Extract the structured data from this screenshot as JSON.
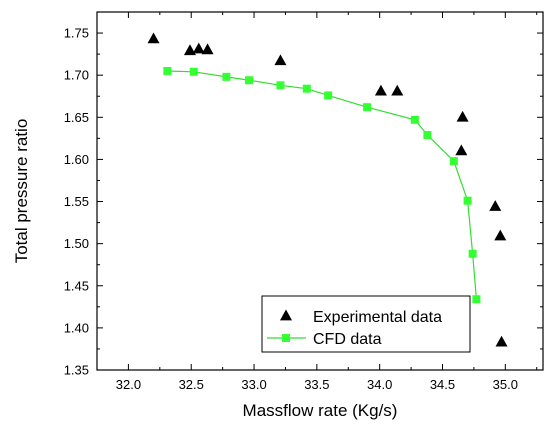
{
  "chart_data": {
    "type": "scatter",
    "title": "",
    "xlabel": "Massflow rate (Kg/s)",
    "ylabel": "Total pressure ratio",
    "xlim": [
      31.75,
      35.3
    ],
    "ylim": [
      1.35,
      1.775
    ],
    "x_ticks": [
      32.0,
      32.5,
      33.0,
      33.5,
      34.0,
      34.5,
      35.0
    ],
    "x_tick_labels": [
      "32.0",
      "32.5",
      "33.0",
      "33.5",
      "34.0",
      "34.5",
      "35.0"
    ],
    "y_ticks": [
      1.35,
      1.4,
      1.45,
      1.5,
      1.55,
      1.6,
      1.65,
      1.7,
      1.75
    ],
    "y_tick_labels": [
      "1.35",
      "1.40",
      "1.45",
      "1.50",
      "1.55",
      "1.60",
      "1.65",
      "1.70",
      "1.75"
    ],
    "grid": false,
    "legend_position": "bottom-center",
    "series": [
      {
        "name": "Experimental data",
        "marker": "triangle",
        "color": "#000000",
        "line": false,
        "x": [
          32.2,
          32.49,
          32.56,
          32.63,
          33.21,
          34.01,
          34.14,
          34.65,
          34.66,
          34.92,
          34.96,
          34.97
        ],
        "y": [
          1.743,
          1.729,
          1.731,
          1.73,
          1.717,
          1.681,
          1.681,
          1.61,
          1.65,
          1.544,
          1.509,
          1.383
        ]
      },
      {
        "name": "CFD data",
        "marker": "square",
        "color": "#33ff33",
        "line_color": "#33dd33",
        "line": true,
        "x": [
          32.31,
          32.52,
          32.78,
          32.96,
          33.21,
          33.42,
          33.59,
          33.9,
          34.28,
          34.38,
          34.59,
          34.7,
          34.74,
          34.77
        ],
        "y": [
          1.705,
          1.704,
          1.698,
          1.694,
          1.688,
          1.684,
          1.676,
          1.662,
          1.647,
          1.629,
          1.598,
          1.551,
          1.488,
          1.434
        ]
      }
    ]
  }
}
